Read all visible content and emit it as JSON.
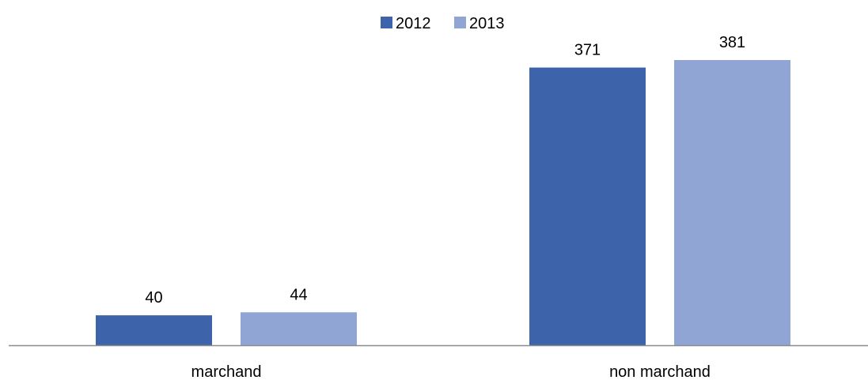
{
  "chart_data": {
    "type": "bar",
    "categories": [
      "marchand",
      "non marchand"
    ],
    "series": [
      {
        "name": "2012",
        "values": [
          40,
          371
        ],
        "color": "#3d64ab"
      },
      {
        "name": "2013",
        "values": [
          44,
          381
        ],
        "color": "#91a5d5"
      }
    ],
    "data_labels": true,
    "legend_position": "top",
    "grid": false,
    "ylim": [
      0,
      400
    ]
  }
}
